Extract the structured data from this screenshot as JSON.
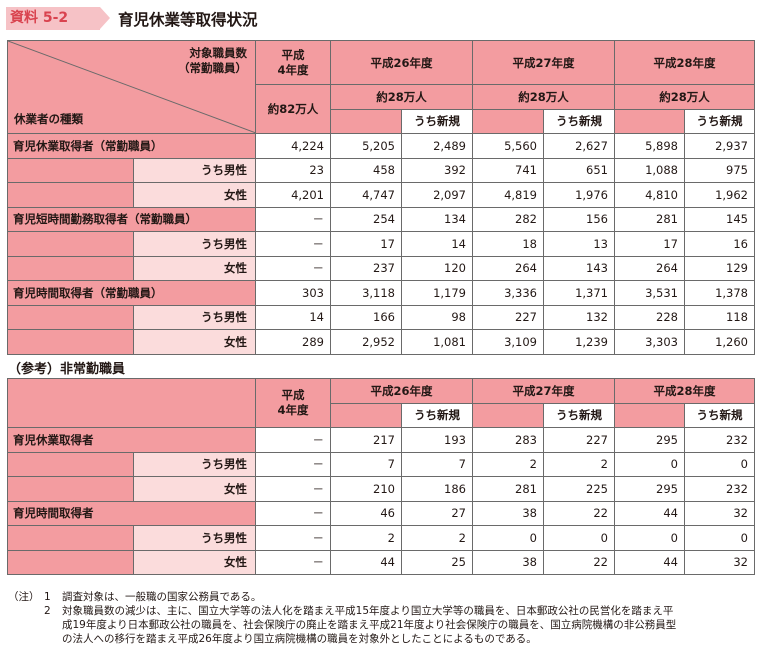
{
  "header": {
    "badge": "資料 5-2",
    "title": "育児休業等取得状況"
  },
  "table1": {
    "corner_top": [
      "対象職員数",
      "（常勤職員）"
    ],
    "corner_bottom": "休業者の種類",
    "col_h4": [
      "平成",
      "4年度"
    ],
    "col_h4_count": "約82万人",
    "years": [
      "平成26年度",
      "平成27年度",
      "平成28年度"
    ],
    "year_counts": [
      "約28万人",
      "約28万人",
      "約28万人"
    ],
    "new_label": "うち新規",
    "groups": [
      {
        "label": "育児休業取得者（常勤職員）",
        "rows": [
          {
            "label": "",
            "values": [
              "4,224",
              "5,205",
              "2,489",
              "5,560",
              "2,627",
              "5,898",
              "2,937"
            ]
          },
          {
            "label": "うち男性",
            "values": [
              "23",
              "458",
              "392",
              "741",
              "651",
              "1,088",
              "975"
            ]
          },
          {
            "label": "女性",
            "values": [
              "4,201",
              "4,747",
              "2,097",
              "4,819",
              "1,976",
              "4,810",
              "1,962"
            ]
          }
        ]
      },
      {
        "label": "育児短時間勤務取得者（常勤職員）",
        "rows": [
          {
            "label": "",
            "values": [
              "－",
              "254",
              "134",
              "282",
              "156",
              "281",
              "145"
            ]
          },
          {
            "label": "うち男性",
            "values": [
              "－",
              "17",
              "14",
              "18",
              "13",
              "17",
              "16"
            ]
          },
          {
            "label": "女性",
            "values": [
              "－",
              "237",
              "120",
              "264",
              "143",
              "264",
              "129"
            ]
          }
        ]
      },
      {
        "label": "育児時間取得者（常勤職員）",
        "rows": [
          {
            "label": "",
            "values": [
              "303",
              "3,118",
              "1,179",
              "3,336",
              "1,371",
              "3,531",
              "1,378"
            ]
          },
          {
            "label": "うち男性",
            "values": [
              "14",
              "166",
              "98",
              "227",
              "132",
              "228",
              "118"
            ]
          },
          {
            "label": "女性",
            "values": [
              "289",
              "2,952",
              "1,081",
              "3,109",
              "1,239",
              "3,303",
              "1,260"
            ]
          }
        ]
      }
    ]
  },
  "section2": {
    "title": "（参考）非常勤職員"
  },
  "table2": {
    "col_h4": [
      "平成",
      "4年度"
    ],
    "years": [
      "平成26年度",
      "平成27年度",
      "平成28年度"
    ],
    "new_label": "うち新規",
    "groups": [
      {
        "label": "育児休業取得者",
        "rows": [
          {
            "label": "",
            "values": [
              "－",
              "217",
              "193",
              "283",
              "227",
              "295",
              "232"
            ]
          },
          {
            "label": "うち男性",
            "values": [
              "－",
              "7",
              "7",
              "2",
              "2",
              "0",
              "0"
            ]
          },
          {
            "label": "女性",
            "values": [
              "－",
              "210",
              "186",
              "281",
              "225",
              "295",
              "232"
            ]
          }
        ]
      },
      {
        "label": "育児時間取得者",
        "rows": [
          {
            "label": "",
            "values": [
              "－",
              "46",
              "27",
              "38",
              "22",
              "44",
              "32"
            ]
          },
          {
            "label": "うち男性",
            "values": [
              "－",
              "2",
              "2",
              "0",
              "0",
              "0",
              "0"
            ]
          },
          {
            "label": "女性",
            "values": [
              "－",
              "44",
              "25",
              "38",
              "22",
              "44",
              "32"
            ]
          }
        ]
      }
    ]
  },
  "notes": {
    "label": "（注）",
    "items": [
      {
        "num": "1",
        "lines": [
          "調査対象は、一般職の国家公務員である。"
        ]
      },
      {
        "num": "2",
        "lines": [
          "対象職員数の減少は、主に、国立大学等の法人化を踏まえ平成15年度より国立大学等の職員を、日本郵政公社の民営化を踏まえ平",
          "成19年度より日本郵政公社の職員を、社会保険庁の廃止を踏まえ平成21年度より社会保険庁の職員を、国立病院機構の非公務員型",
          "の法人への移行を踏まえ平成26年度より国立病院機構の職員を対象外としたことによるものである。"
        ]
      }
    ]
  }
}
